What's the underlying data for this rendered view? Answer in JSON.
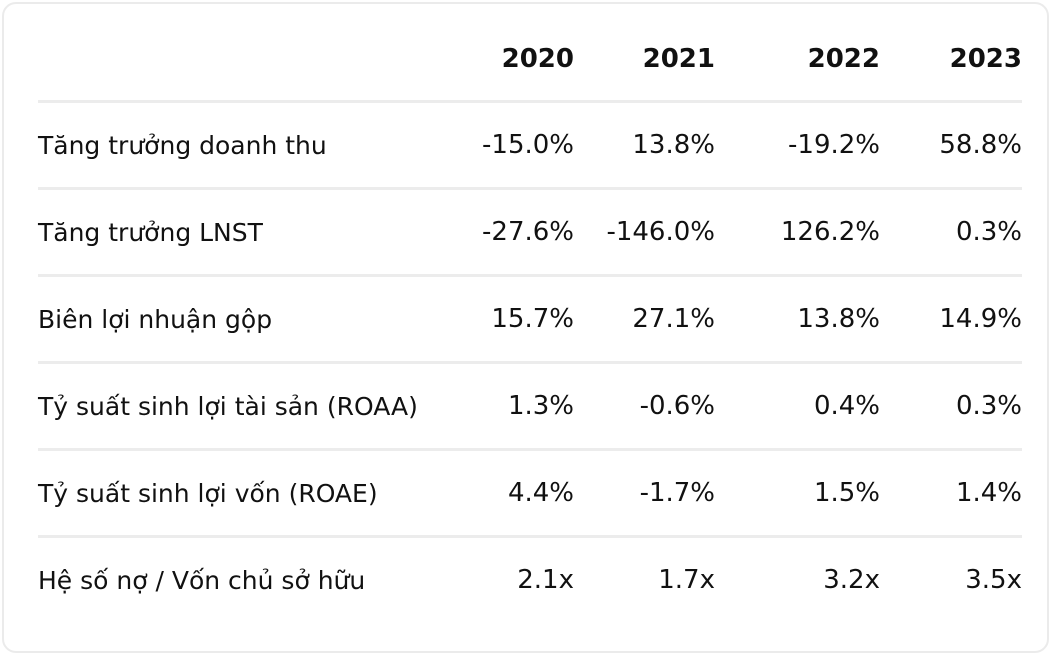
{
  "table": {
    "columns": [
      "2020",
      "2021",
      "2022",
      "2023"
    ],
    "rows": [
      {
        "label": "Tăng trưởng doanh thu",
        "values": [
          "-15.0%",
          "13.8%",
          "-19.2%",
          "58.8%"
        ]
      },
      {
        "label": "Tăng trưởng LNST",
        "values": [
          "-27.6%",
          "-146.0%",
          "126.2%",
          "0.3%"
        ]
      },
      {
        "label": "Biên lợi nhuận gộp",
        "values": [
          "15.7%",
          "27.1%",
          "13.8%",
          "14.9%"
        ]
      },
      {
        "label": "Tỷ suất sinh lợi tài sản (ROAA)",
        "values": [
          "1.3%",
          "-0.6%",
          "0.4%",
          "0.3%"
        ]
      },
      {
        "label": "Tỷ suất sinh lợi vốn (ROAE)",
        "values": [
          "4.4%",
          "-1.7%",
          "1.5%",
          "1.4%"
        ]
      },
      {
        "label": "Hệ số nợ / Vốn chủ sở hữu",
        "values": [
          "2.1x",
          "1.7x",
          "3.2x",
          "3.5x"
        ]
      }
    ]
  }
}
